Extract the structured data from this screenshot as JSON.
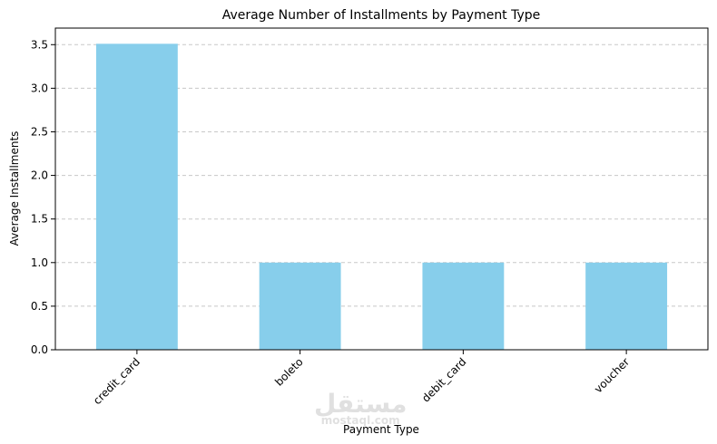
{
  "watermark": {
    "arabic": "مستقل",
    "latin": "mostaql.com"
  },
  "chart_data": {
    "type": "bar",
    "title": "Average Number of Installments by Payment Type",
    "xlabel": "Payment Type",
    "ylabel": "Average Installments",
    "categories": [
      "credit_card",
      "boleto",
      "debit_card",
      "voucher"
    ],
    "values": [
      3.51,
      1.0,
      1.0,
      1.0
    ],
    "ylim": [
      0,
      3.69
    ],
    "yticks": [
      "0.0",
      "0.5",
      "1.0",
      "1.5",
      "2.0",
      "2.5",
      "3.0",
      "3.5"
    ],
    "grid": "y-dashed",
    "colors": {
      "bar": "#87ceeb",
      "grid": "#c8c8c8"
    }
  }
}
